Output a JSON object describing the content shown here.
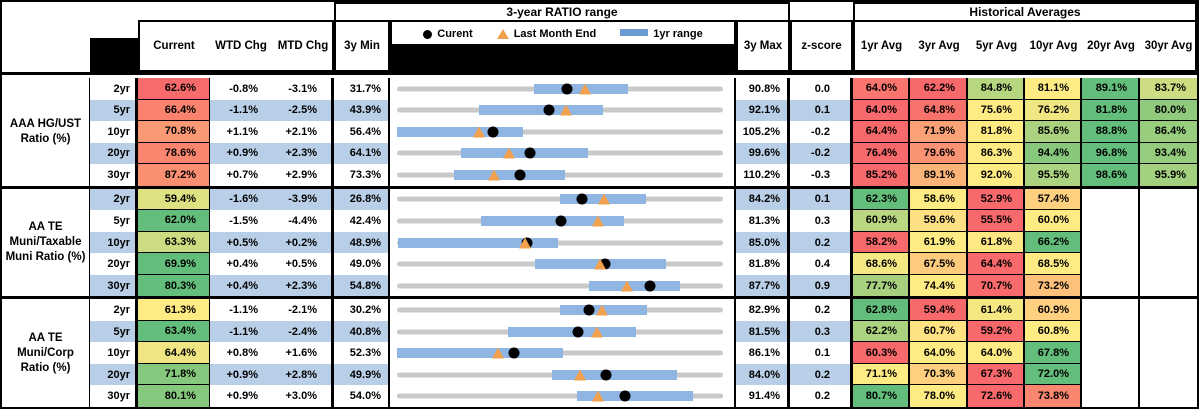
{
  "header": {
    "range_title": "3-year RATIO range",
    "hist_title": "Historical Averages",
    "col_current": "Current",
    "col_wtd": "WTD Chg",
    "col_mtd": "MTD Chg",
    "col_3y_min": "3y Min",
    "col_3y_max": "3y Max",
    "col_zscore": "z-score",
    "avg_cols": [
      "1yr Avg",
      "3yr Avg",
      "5yr Avg",
      "10yr Avg",
      "20yr Avg",
      "30yr Avg"
    ],
    "legend": {
      "current": "Curent",
      "last_month": "Last Month End",
      "range_1yr": "1yr range"
    }
  },
  "colors": {
    "zebra_blue": "#B9CFE7",
    "bar_blue": "#8FB5E3",
    "track_gray": "#C9C9C9",
    "triangle_orange": "#F2A14E",
    "dot_black": "#000000",
    "scale_red": "#F8696B",
    "scale_yellow": "#FFEB84",
    "scale_green": "#63BE7B"
  },
  "sections": [
    {
      "label": "AAA HG/UST Ratio (%)",
      "rows": [
        {
          "tenor": "2yr",
          "current": "62.6%",
          "current_color": "#F86B6B",
          "wtd": "-0.8%",
          "mtd": "-3.1%",
          "min": "31.7%",
          "max": "90.8%",
          "zscore": "0.0",
          "zebra": false,
          "range": {
            "min": 31.7,
            "max": 90.8,
            "bar_low": 56.5,
            "bar_high": 73.5,
            "dot": 62.6,
            "tri": 65.7
          },
          "avgs": [
            {
              "v": "64.0%",
              "c": "#F9756D"
            },
            {
              "v": "62.2%",
              "c": "#F8696B"
            },
            {
              "v": "84.8%",
              "c": "#B6D67F"
            },
            {
              "v": "81.1%",
              "c": "#FFEB84"
            },
            {
              "v": "89.1%",
              "c": "#63BE7B"
            },
            {
              "v": "83.7%",
              "c": "#CCDC81"
            }
          ]
        },
        {
          "tenor": "5yr",
          "current": "66.4%",
          "current_color": "#F9836F",
          "wtd": "-1.1%",
          "mtd": "-2.5%",
          "min": "43.9%",
          "max": "92.1%",
          "zscore": "0.1",
          "zebra": true,
          "range": {
            "min": 43.9,
            "max": 92.1,
            "bar_low": 56.0,
            "bar_high": 74.3,
            "dot": 66.4,
            "tri": 68.9
          },
          "avgs": [
            {
              "v": "64.0%",
              "c": "#F8696B"
            },
            {
              "v": "64.8%",
              "c": "#F8726C"
            },
            {
              "v": "75.6%",
              "c": "#FFEB84"
            },
            {
              "v": "76.2%",
              "c": "#F0E783"
            },
            {
              "v": "81.8%",
              "c": "#63BE7B"
            },
            {
              "v": "80.0%",
              "c": "#90CB7D"
            }
          ]
        },
        {
          "tenor": "10yr",
          "current": "70.8%",
          "current_color": "#FB9974",
          "wtd": "+1.1%",
          "mtd": "+2.1%",
          "min": "56.4%",
          "max": "105.2%",
          "zscore": "-0.2",
          "zebra": false,
          "range": {
            "min": 56.4,
            "max": 105.2,
            "bar_low": 56.4,
            "bar_high": 75.3,
            "dot": 70.8,
            "tri": 68.7
          },
          "avgs": [
            {
              "v": "64.4%",
              "c": "#F8696B"
            },
            {
              "v": "71.9%",
              "c": "#FBA176"
            },
            {
              "v": "81.8%",
              "c": "#FFEB84"
            },
            {
              "v": "85.6%",
              "c": "#AAD27F"
            },
            {
              "v": "88.8%",
              "c": "#63BE7B"
            },
            {
              "v": "86.4%",
              "c": "#98CD7E"
            }
          ]
        },
        {
          "tenor": "20yr",
          "current": "78.6%",
          "current_color": "#FA8670",
          "wtd": "+0.9%",
          "mtd": "+2.3%",
          "min": "64.1%",
          "max": "99.6%",
          "zscore": "-0.2",
          "zebra": true,
          "range": {
            "min": 64.1,
            "max": 99.6,
            "bar_low": 71.1,
            "bar_high": 84.9,
            "dot": 78.6,
            "tri": 76.3
          },
          "avgs": [
            {
              "v": "76.4%",
              "c": "#F8696B"
            },
            {
              "v": "79.6%",
              "c": "#FA9373"
            },
            {
              "v": "86.3%",
              "c": "#FFEB84"
            },
            {
              "v": "94.4%",
              "c": "#87C87D"
            },
            {
              "v": "96.8%",
              "c": "#63BE7B"
            },
            {
              "v": "93.4%",
              "c": "#95CC7E"
            }
          ]
        },
        {
          "tenor": "30yr",
          "current": "87.2%",
          "current_color": "#FA8F72",
          "wtd": "+0.7%",
          "mtd": "+2.9%",
          "min": "73.3%",
          "max": "110.2%",
          "zscore": "-0.3",
          "zebra": false,
          "range": {
            "min": 73.3,
            "max": 110.2,
            "bar_low": 79.8,
            "bar_high": 92.3,
            "dot": 87.2,
            "tri": 84.3
          },
          "avgs": [
            {
              "v": "85.2%",
              "c": "#F8696B"
            },
            {
              "v": "89.1%",
              "c": "#FCB479"
            },
            {
              "v": "92.0%",
              "c": "#FFEB84"
            },
            {
              "v": "95.5%",
              "c": "#ACD37F"
            },
            {
              "v": "98.6%",
              "c": "#63BE7B"
            },
            {
              "v": "95.9%",
              "c": "#A3D07F"
            }
          ]
        }
      ]
    },
    {
      "label": "AA TE Muni/Taxable Muni Ratio (%)",
      "rows": [
        {
          "tenor": "2yr",
          "current": "59.4%",
          "current_color": "#DDE182",
          "wtd": "-1.6%",
          "mtd": "-3.9%",
          "min": "26.8%",
          "max": "84.2%",
          "zscore": "0.1",
          "zebra": true,
          "range": {
            "min": 26.8,
            "max": 84.2,
            "bar_low": 55.5,
            "bar_high": 70.7,
            "dot": 59.4,
            "tri": 63.3
          },
          "avgs": [
            {
              "v": "62.3%",
              "c": "#63BE7B"
            },
            {
              "v": "58.6%",
              "c": "#FFEB84"
            },
            {
              "v": "52.9%",
              "c": "#F8696B"
            },
            {
              "v": "57.4%",
              "c": "#FED07F"
            }
          ]
        },
        {
          "tenor": "5yr",
          "current": "62.0%",
          "current_color": "#63BE7B",
          "wtd": "-1.5%",
          "mtd": "-4.4%",
          "min": "42.4%",
          "max": "81.3%",
          "zscore": "0.3",
          "zebra": false,
          "range": {
            "min": 42.4,
            "max": 81.3,
            "bar_low": 52.4,
            "bar_high": 69.5,
            "dot": 62.0,
            "tri": 66.4
          },
          "avgs": [
            {
              "v": "60.9%",
              "c": "#B9D780"
            },
            {
              "v": "59.6%",
              "c": "#FEDF82"
            },
            {
              "v": "55.5%",
              "c": "#F8696B"
            },
            {
              "v": "60.0%",
              "c": "#FFEB84"
            }
          ]
        },
        {
          "tenor": "10yr",
          "current": "63.3%",
          "current_color": "#CCDC81",
          "wtd": "+0.5%",
          "mtd": "+0.2%",
          "min": "48.9%",
          "max": "85.0%",
          "zscore": "0.2",
          "zebra": true,
          "range": {
            "min": 48.9,
            "max": 85.0,
            "bar_low": 49.0,
            "bar_high": 66.7,
            "dot": 63.3,
            "tri": 63.1
          },
          "avgs": [
            {
              "v": "58.2%",
              "c": "#F8696B"
            },
            {
              "v": "61.9%",
              "c": "#FFEB84"
            },
            {
              "v": "61.8%",
              "c": "#FFE783"
            },
            {
              "v": "66.2%",
              "c": "#63BE7B"
            }
          ]
        },
        {
          "tenor": "20yr",
          "current": "69.9%",
          "current_color": "#63BE7B",
          "wtd": "+0.4%",
          "mtd": "+0.5%",
          "min": "49.0%",
          "max": "81.8%",
          "zscore": "0.4",
          "zebra": false,
          "range": {
            "min": 49.0,
            "max": 81.8,
            "bar_low": 62.9,
            "bar_high": 76.1,
            "dot": 69.9,
            "tri": 69.4
          },
          "avgs": [
            {
              "v": "68.6%",
              "c": "#F4E883"
            },
            {
              "v": "67.5%",
              "c": "#FDCB7E"
            },
            {
              "v": "64.4%",
              "c": "#F8696B"
            },
            {
              "v": "68.5%",
              "c": "#FFEB84"
            }
          ]
        },
        {
          "tenor": "30yr",
          "current": "80.3%",
          "current_color": "#63BE7B",
          "wtd": "+0.4%",
          "mtd": "+2.3%",
          "min": "54.8%",
          "max": "87.7%",
          "zscore": "0.9",
          "zebra": true,
          "range": {
            "min": 54.8,
            "max": 87.7,
            "bar_low": 74.2,
            "bar_high": 83.4,
            "dot": 80.3,
            "tri": 78.0
          },
          "avgs": [
            {
              "v": "77.7%",
              "c": "#A8D17F"
            },
            {
              "v": "74.4%",
              "c": "#FFEB84"
            },
            {
              "v": "70.7%",
              "c": "#F8696B"
            },
            {
              "v": "73.2%",
              "c": "#FDC17C"
            }
          ]
        }
      ]
    },
    {
      "label": "AA TE Muni/Corp Ratio (%)",
      "rows": [
        {
          "tenor": "2yr",
          "current": "61.3%",
          "current_color": "#FFEB84",
          "wtd": "-1.1%",
          "mtd": "-2.1%",
          "min": "30.2%",
          "max": "82.9%",
          "zscore": "0.2",
          "zebra": false,
          "range": {
            "min": 30.2,
            "max": 82.9,
            "bar_low": 56.6,
            "bar_high": 70.6,
            "dot": 61.3,
            "tri": 63.4
          },
          "avgs": [
            {
              "v": "62.8%",
              "c": "#63BE7B"
            },
            {
              "v": "59.4%",
              "c": "#F8696B"
            },
            {
              "v": "61.4%",
              "c": "#F5E883"
            },
            {
              "v": "60.9%",
              "c": "#FED080"
            }
          ]
        },
        {
          "tenor": "5yr",
          "current": "63.4%",
          "current_color": "#63BE7B",
          "wtd": "-1.1%",
          "mtd": "-2.4%",
          "min": "40.8%",
          "max": "81.5%",
          "zscore": "0.3",
          "zebra": true,
          "range": {
            "min": 40.8,
            "max": 81.5,
            "bar_low": 54.7,
            "bar_high": 70.6,
            "dot": 63.4,
            "tri": 65.8
          },
          "avgs": [
            {
              "v": "62.2%",
              "c": "#ABD37F"
            },
            {
              "v": "60.7%",
              "c": "#FFE382"
            },
            {
              "v": "59.2%",
              "c": "#F8696B"
            },
            {
              "v": "60.8%",
              "c": "#FFEB84"
            }
          ]
        },
        {
          "tenor": "10yr",
          "current": "64.4%",
          "current_color": "#EFE683",
          "wtd": "+0.8%",
          "mtd": "+1.6%",
          "min": "52.3%",
          "max": "86.1%",
          "zscore": "0.1",
          "zebra": false,
          "range": {
            "min": 52.3,
            "max": 86.1,
            "bar_low": 52.3,
            "bar_high": 69.5,
            "dot": 64.4,
            "tri": 62.8
          },
          "avgs": [
            {
              "v": "60.3%",
              "c": "#F8696B"
            },
            {
              "v": "64.0%",
              "c": "#FFEB84"
            },
            {
              "v": "64.0%",
              "c": "#FFEB84"
            },
            {
              "v": "67.8%",
              "c": "#63BE7B"
            }
          ]
        },
        {
          "tenor": "20yr",
          "current": "71.8%",
          "current_color": "#86C87D",
          "wtd": "+0.9%",
          "mtd": "+2.8%",
          "min": "49.9%",
          "max": "84.0%",
          "zscore": "0.2",
          "zebra": true,
          "range": {
            "min": 49.9,
            "max": 84.0,
            "bar_low": 66.1,
            "bar_high": 79.2,
            "dot": 71.8,
            "tri": 69.0
          },
          "avgs": [
            {
              "v": "71.1%",
              "c": "#FFEB84"
            },
            {
              "v": "70.3%",
              "c": "#FED080"
            },
            {
              "v": "67.3%",
              "c": "#F8696B"
            },
            {
              "v": "72.0%",
              "c": "#63BE7B"
            }
          ]
        },
        {
          "tenor": "30yr",
          "current": "80.1%",
          "current_color": "#86C87D",
          "wtd": "+0.9%",
          "mtd": "+3.0%",
          "min": "54.0%",
          "max": "91.4%",
          "zscore": "0.2",
          "zebra": false,
          "range": {
            "min": 54.0,
            "max": 91.4,
            "bar_low": 74.6,
            "bar_high": 88.0,
            "dot": 80.1,
            "tri": 77.1
          },
          "avgs": [
            {
              "v": "80.7%",
              "c": "#63BE7B"
            },
            {
              "v": "78.0%",
              "c": "#FFEB84"
            },
            {
              "v": "72.6%",
              "c": "#F8696B"
            },
            {
              "v": "73.8%",
              "c": "#FA8670"
            }
          ]
        }
      ]
    }
  ],
  "chart_data": {
    "type": "range-dot-strip",
    "unit": "%",
    "title": "3-year RATIO range",
    "legend": [
      "Curent (black dot)",
      "Last Month End (orange triangle)",
      "1yr range (blue bar)"
    ],
    "rows": [
      {
        "label": "AAA HG/UST 2yr",
        "axis_min": 31.7,
        "axis_max": 90.8,
        "range_1yr": [
          56.5,
          73.5
        ],
        "current": 62.6,
        "last_month_end": 65.7
      },
      {
        "label": "AAA HG/UST 5yr",
        "axis_min": 43.9,
        "axis_max": 92.1,
        "range_1yr": [
          56.0,
          74.3
        ],
        "current": 66.4,
        "last_month_end": 68.9
      },
      {
        "label": "AAA HG/UST 10yr",
        "axis_min": 56.4,
        "axis_max": 105.2,
        "range_1yr": [
          56.4,
          75.3
        ],
        "current": 70.8,
        "last_month_end": 68.7
      },
      {
        "label": "AAA HG/UST 20yr",
        "axis_min": 64.1,
        "axis_max": 99.6,
        "range_1yr": [
          71.1,
          84.9
        ],
        "current": 78.6,
        "last_month_end": 76.3
      },
      {
        "label": "AAA HG/UST 30yr",
        "axis_min": 73.3,
        "axis_max": 110.2,
        "range_1yr": [
          79.8,
          92.3
        ],
        "current": 87.2,
        "last_month_end": 84.3
      },
      {
        "label": "AA TE Muni/Taxable 2yr",
        "axis_min": 26.8,
        "axis_max": 84.2,
        "range_1yr": [
          55.5,
          70.7
        ],
        "current": 59.4,
        "last_month_end": 63.3
      },
      {
        "label": "AA TE Muni/Taxable 5yr",
        "axis_min": 42.4,
        "axis_max": 81.3,
        "range_1yr": [
          52.4,
          69.5
        ],
        "current": 62.0,
        "last_month_end": 66.4
      },
      {
        "label": "AA TE Muni/Taxable 10yr",
        "axis_min": 48.9,
        "axis_max": 85.0,
        "range_1yr": [
          49.0,
          66.7
        ],
        "current": 63.3,
        "last_month_end": 63.1
      },
      {
        "label": "AA TE Muni/Taxable 20yr",
        "axis_min": 49.0,
        "axis_max": 81.8,
        "range_1yr": [
          62.9,
          76.1
        ],
        "current": 69.9,
        "last_month_end": 69.4
      },
      {
        "label": "AA TE Muni/Taxable 30yr",
        "axis_min": 54.8,
        "axis_max": 87.7,
        "range_1yr": [
          74.2,
          83.4
        ],
        "current": 80.3,
        "last_month_end": 78.0
      },
      {
        "label": "AA TE Muni/Corp 2yr",
        "axis_min": 30.2,
        "axis_max": 82.9,
        "range_1yr": [
          56.6,
          70.6
        ],
        "current": 61.3,
        "last_month_end": 63.4
      },
      {
        "label": "AA TE Muni/Corp 5yr",
        "axis_min": 40.8,
        "axis_max": 81.5,
        "range_1yr": [
          54.7,
          70.6
        ],
        "current": 63.4,
        "last_month_end": 65.8
      },
      {
        "label": "AA TE Muni/Corp 10yr",
        "axis_min": 52.3,
        "axis_max": 86.1,
        "range_1yr": [
          52.3,
          69.5
        ],
        "current": 64.4,
        "last_month_end": 62.8
      },
      {
        "label": "AA TE Muni/Corp 20yr",
        "axis_min": 49.9,
        "axis_max": 84.0,
        "range_1yr": [
          66.1,
          79.2
        ],
        "current": 71.8,
        "last_month_end": 69.0
      },
      {
        "label": "AA TE Muni/Corp 30yr",
        "axis_min": 54.0,
        "axis_max": 91.4,
        "range_1yr": [
          74.6,
          88.0
        ],
        "current": 80.1,
        "last_month_end": 77.1
      }
    ]
  }
}
